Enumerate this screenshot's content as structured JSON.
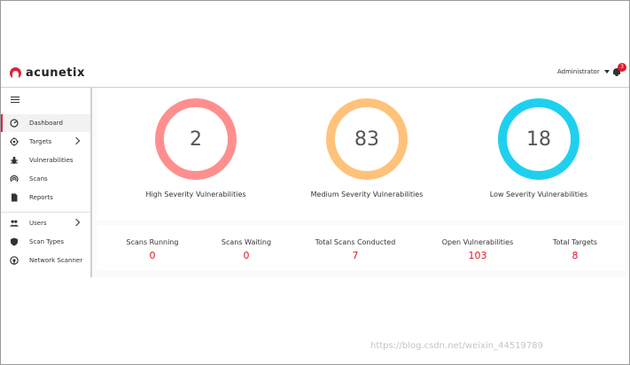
{
  "header": {
    "brand": "acunetix",
    "user": "Administrator",
    "notifications": "3",
    "colors": {
      "brand": "#d7263d",
      "badge": "#e0192b"
    }
  },
  "sidebar": {
    "items": [
      {
        "label": "Dashboard",
        "icon": "gauge-icon",
        "active": true
      },
      {
        "label": "Targets",
        "icon": "target-icon",
        "chevron": true
      },
      {
        "label": "Vulnerabilities",
        "icon": "bug-icon"
      },
      {
        "label": "Scans",
        "icon": "radar-icon"
      },
      {
        "label": "Reports",
        "icon": "document-icon"
      },
      {
        "label": "Users",
        "icon": "users-icon",
        "chevron": true
      },
      {
        "label": "Scan Types",
        "icon": "shield-icon"
      },
      {
        "label": "Network Scanner",
        "icon": "network-icon"
      }
    ]
  },
  "severity": [
    {
      "count": "2",
      "label": "High Severity Vulnerabilities",
      "color": "#ff8f8f"
    },
    {
      "count": "83",
      "label": "Medium Severity Vulnerabilities",
      "color": "#ffc27a"
    },
    {
      "count": "18",
      "label": "Low Severity Vulnerabilities",
      "color": "#1fd0ee"
    }
  ],
  "stats": [
    {
      "label": "Scans Running",
      "value": "0"
    },
    {
      "label": "Scans Waiting",
      "value": "0"
    },
    {
      "label": "Total Scans Conducted",
      "value": "7"
    },
    {
      "label": "Open Vulnerabilities",
      "value": "103"
    },
    {
      "label": "Total Targets",
      "value": "8"
    }
  ],
  "watermark": "https://blog.csdn.net/weixin_44519789"
}
